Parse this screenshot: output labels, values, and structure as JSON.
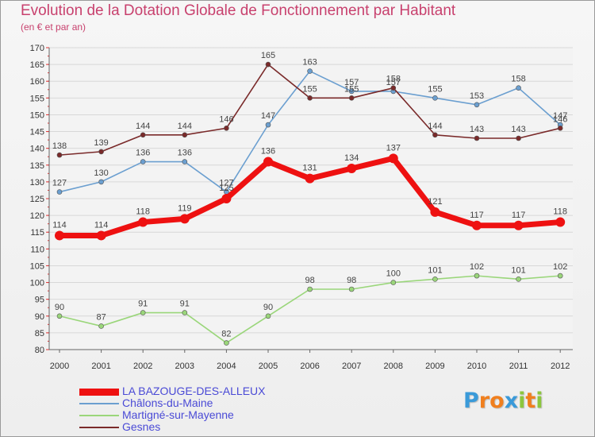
{
  "header": {
    "title": "Evolution de la Dotation Globale de Fonctionnement par Habitant",
    "subtitle": "(en € et par an)"
  },
  "logo": {
    "letters": [
      "P",
      "r",
      "o",
      "x",
      "i",
      "t",
      "i"
    ],
    "colors": [
      "#3a9ad9",
      "#f07f1e",
      "#f07f1e",
      "#3a9ad9",
      "#8cc63e",
      "#f07f1e",
      "#8cc63e"
    ]
  },
  "chart_data": {
    "type": "line",
    "title": "Evolution de la Dotation Globale de Fonctionnement par Habitant",
    "subtitle": "(en € et par an)",
    "xlabel": "",
    "ylabel": "",
    "ylim": [
      80,
      170
    ],
    "yticks": [
      80,
      85,
      90,
      95,
      100,
      105,
      110,
      115,
      120,
      125,
      130,
      135,
      140,
      145,
      150,
      155,
      160,
      165,
      170
    ],
    "grid": true,
    "legend_position": "bottom-left",
    "categories": [
      "2000",
      "2001",
      "2002",
      "2003",
      "2004",
      "2005",
      "2006",
      "2007",
      "2008",
      "2009",
      "2010",
      "2011",
      "2012"
    ],
    "series": [
      {
        "name": "LA BAZOUGE-DES-ALLEUX",
        "color": "#ee1111",
        "values": [
          114,
          114,
          118,
          119,
          125,
          136,
          131,
          134,
          137,
          121,
          117,
          117,
          118
        ],
        "labels": [
          "114",
          "114",
          "118",
          "119",
          "125",
          "136",
          "131",
          "134",
          "137",
          "121",
          "117",
          "117",
          "118"
        ],
        "highlight": true
      },
      {
        "name": "Châlons-du-Maine",
        "color": "#6b9fd0",
        "values": [
          127,
          130,
          136,
          136,
          127,
          147,
          163,
          157,
          157,
          155,
          153,
          158,
          147
        ],
        "labels": [
          "127",
          "130",
          "136",
          "136",
          "127",
          "147",
          "163",
          "157",
          "157",
          "155",
          "153",
          "158",
          "147"
        ]
      },
      {
        "name": "Martigné-sur-Mayenne",
        "color": "#9ad67a",
        "values": [
          90,
          87,
          91,
          91,
          82,
          90,
          98,
          98,
          100,
          101,
          102,
          101,
          102
        ],
        "labels": [
          "90",
          "87",
          "91",
          "91",
          "82",
          "90",
          "98",
          "98",
          "100",
          "101",
          "102",
          "101",
          "102"
        ]
      },
      {
        "name": "Gesnes",
        "color": "#7a2a2a",
        "values": [
          138,
          139,
          144,
          144,
          146,
          165,
          155,
          155,
          158,
          144,
          143,
          143,
          146
        ],
        "labels": [
          "138",
          "139",
          "144",
          "144",
          "146",
          "165",
          "155",
          "155",
          "158",
          "144",
          "143",
          "143",
          "146"
        ]
      }
    ]
  }
}
